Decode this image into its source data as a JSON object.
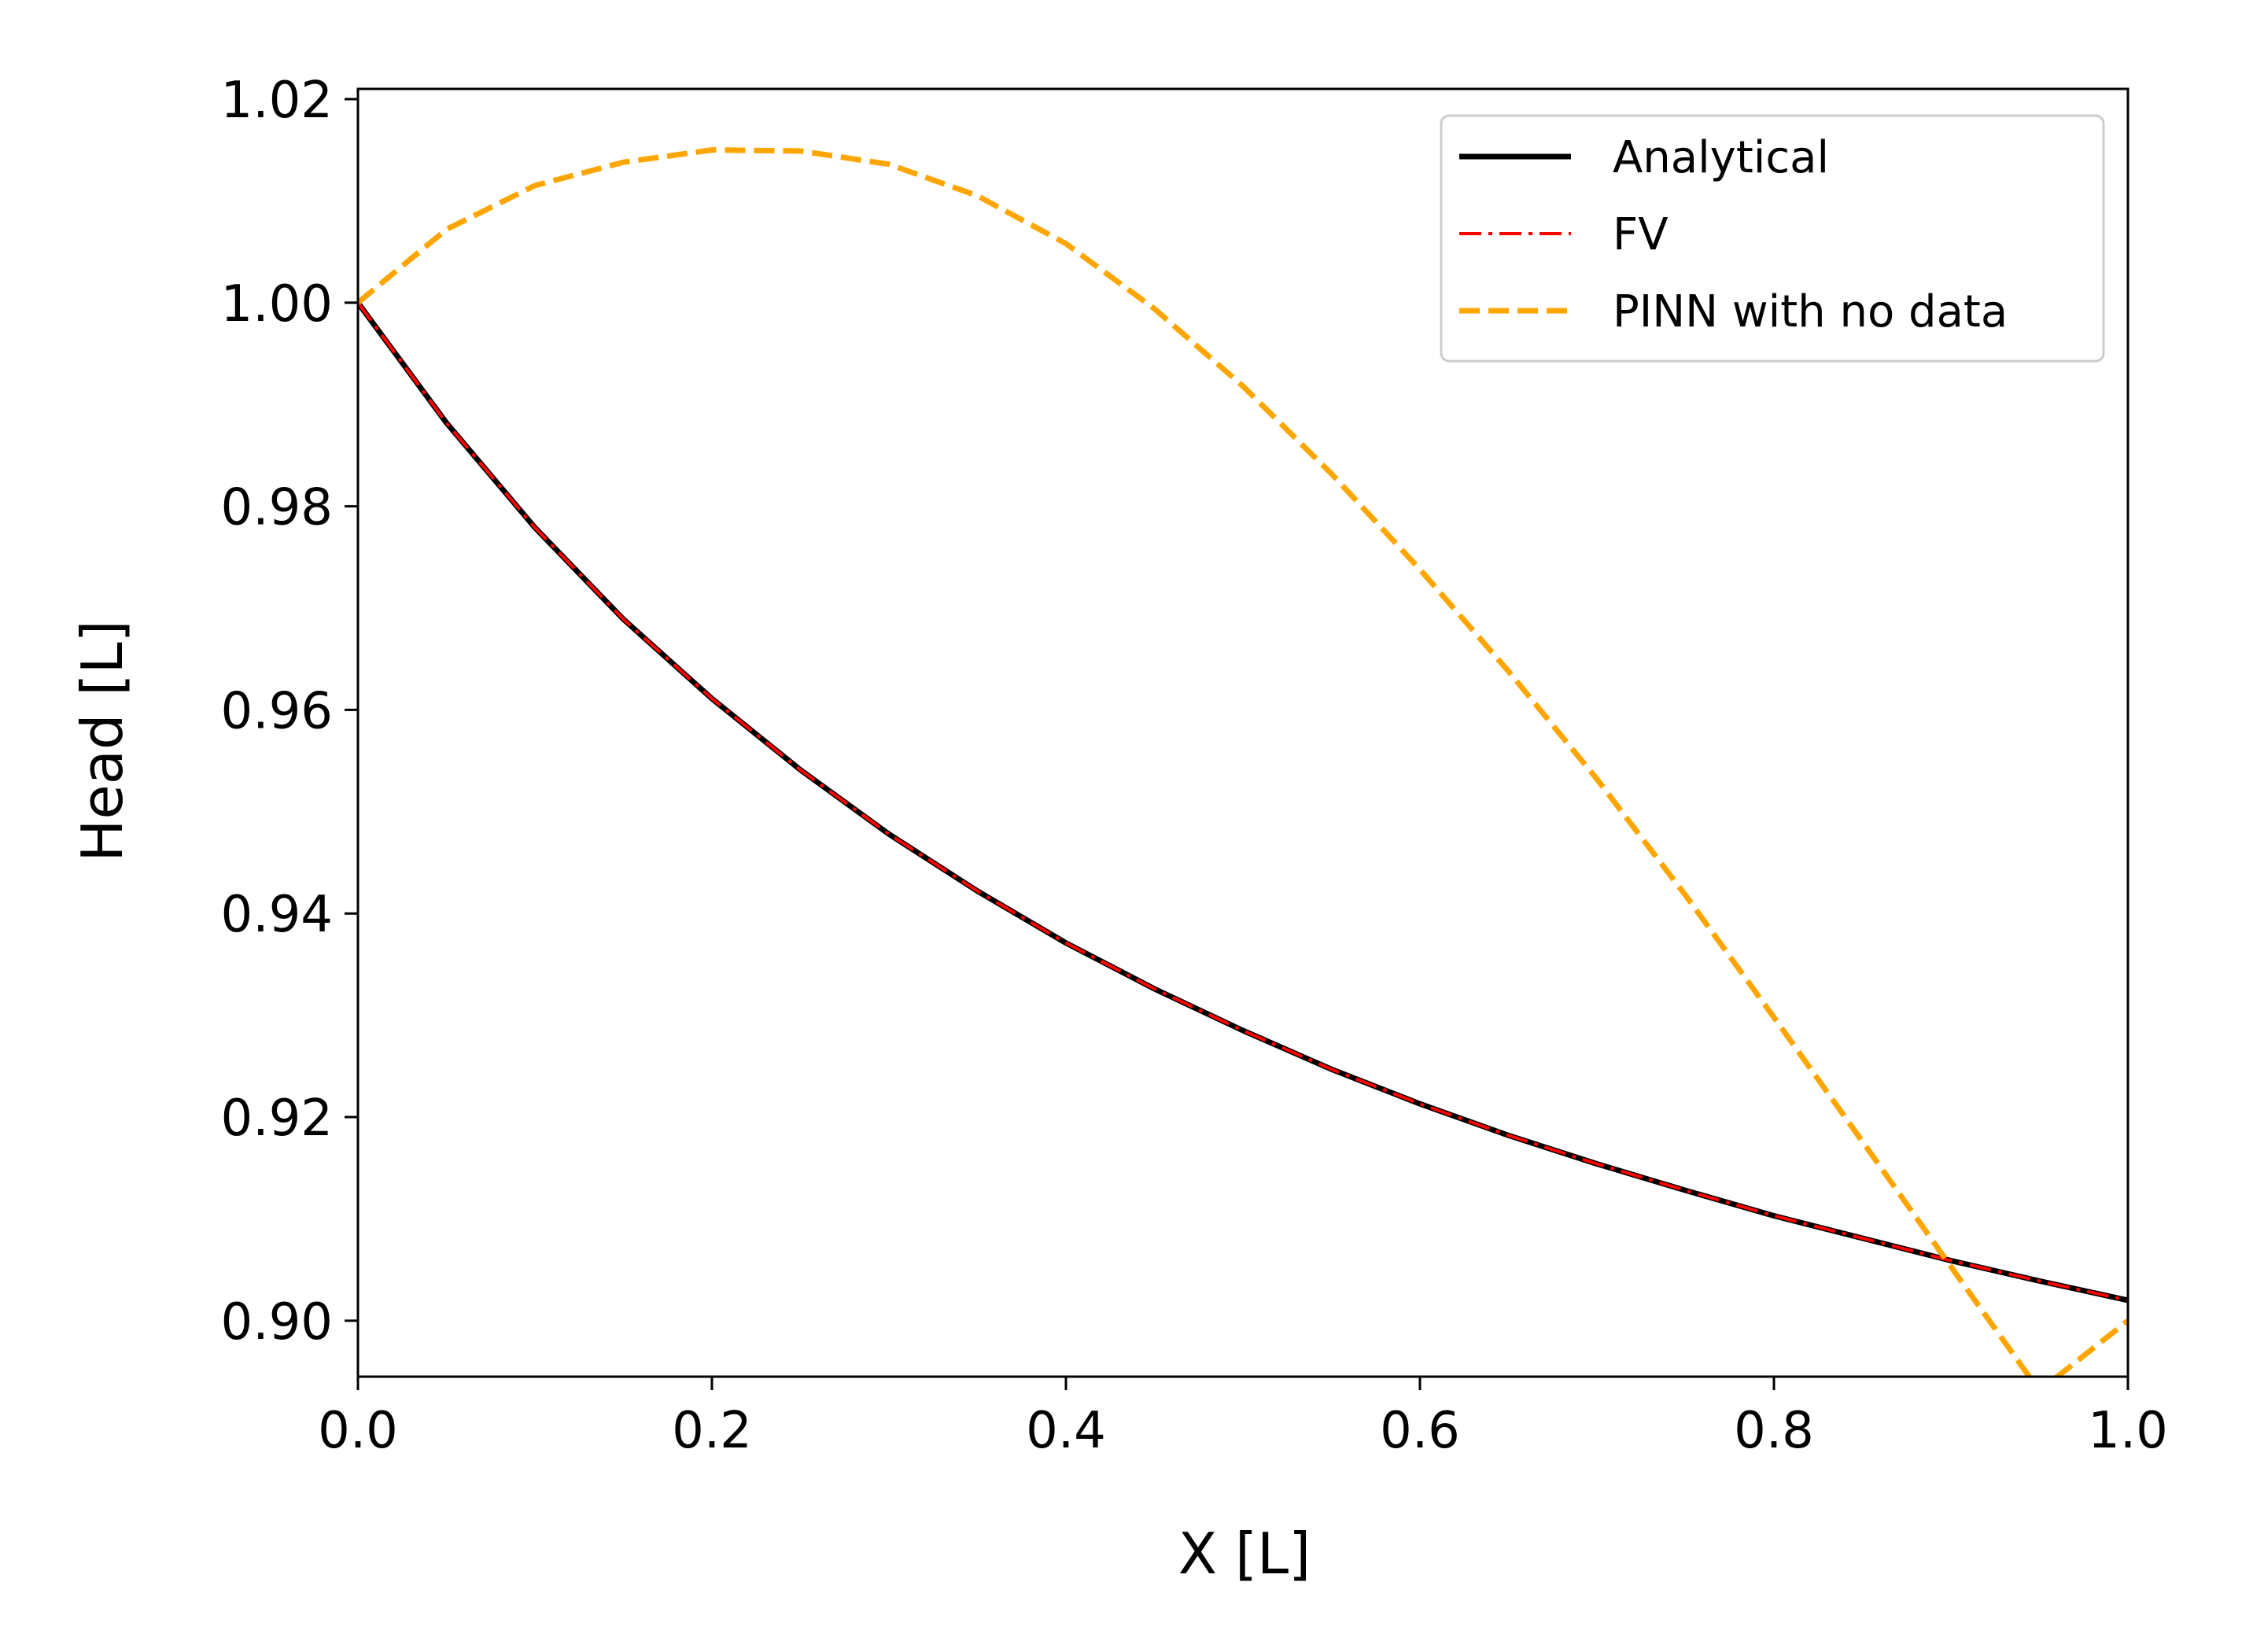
{
  "chart_data": {
    "type": "line",
    "title": "",
    "xlabel": "X [L]",
    "ylabel": "Head [L]",
    "xlim": [
      0.0,
      1.0
    ],
    "ylim": [
      0.8945,
      1.021
    ],
    "xticks": [
      0.0,
      0.2,
      0.4,
      0.6,
      0.8,
      1.0
    ],
    "xtick_labels": [
      "0.0",
      "0.2",
      "0.4",
      "0.6",
      "0.8",
      "1.0"
    ],
    "yticks": [
      0.9,
      0.92,
      0.94,
      0.96,
      0.98,
      1.0,
      1.02
    ],
    "ytick_labels": [
      "0.90",
      "0.92",
      "0.94",
      "0.96",
      "0.98",
      "1.00",
      "1.02"
    ],
    "grid": false,
    "legend_position": "top-right",
    "series": [
      {
        "name": "Analytical",
        "color": "#000000",
        "style": "solid",
        "x": [
          0.0,
          0.05,
          0.1,
          0.15,
          0.2,
          0.25,
          0.3,
          0.35,
          0.4,
          0.45,
          0.5,
          0.55,
          0.6,
          0.65,
          0.7,
          0.75,
          0.8,
          0.85,
          0.9,
          0.95,
          1.0
        ],
        "y": [
          1.0,
          0.9882,
          0.9779,
          0.9689,
          0.9611,
          0.9541,
          0.9478,
          0.9422,
          0.9371,
          0.9326,
          0.9285,
          0.9247,
          0.9213,
          0.9182,
          0.9154,
          0.9128,
          0.9103,
          0.9081,
          0.9059,
          0.9039,
          0.902
        ]
      },
      {
        "name": "FV",
        "color": "#ff0000",
        "style": "dashdot",
        "x": [
          0.0,
          0.05,
          0.1,
          0.15,
          0.2,
          0.25,
          0.3,
          0.35,
          0.4,
          0.45,
          0.5,
          0.55,
          0.6,
          0.65,
          0.7,
          0.75,
          0.8,
          0.85,
          0.9,
          0.95,
          1.0
        ],
        "y": [
          1.0,
          0.9882,
          0.9779,
          0.9689,
          0.9611,
          0.9541,
          0.9478,
          0.9422,
          0.9371,
          0.9326,
          0.9285,
          0.9247,
          0.9213,
          0.9182,
          0.9154,
          0.9128,
          0.9103,
          0.9081,
          0.9059,
          0.9039,
          0.902
        ]
      },
      {
        "name": "PINN with no data",
        "color": "#ffa500",
        "style": "dashed",
        "x": [
          0.0,
          0.05,
          0.1,
          0.15,
          0.2,
          0.25,
          0.3,
          0.35,
          0.4,
          0.45,
          0.5,
          0.55,
          0.6,
          0.65,
          0.7,
          0.75,
          0.8,
          0.85,
          0.9,
          0.95,
          1.0
        ],
        "y": [
          1.0,
          1.0072,
          1.0115,
          1.0138,
          1.015,
          1.0149,
          1.0136,
          1.0105,
          1.0058,
          0.9994,
          0.9918,
          0.9832,
          0.9738,
          0.9638,
          0.9532,
          0.9418,
          0.9298,
          0.9176,
          0.9053,
          0.8931,
          0.9
        ]
      }
    ]
  }
}
